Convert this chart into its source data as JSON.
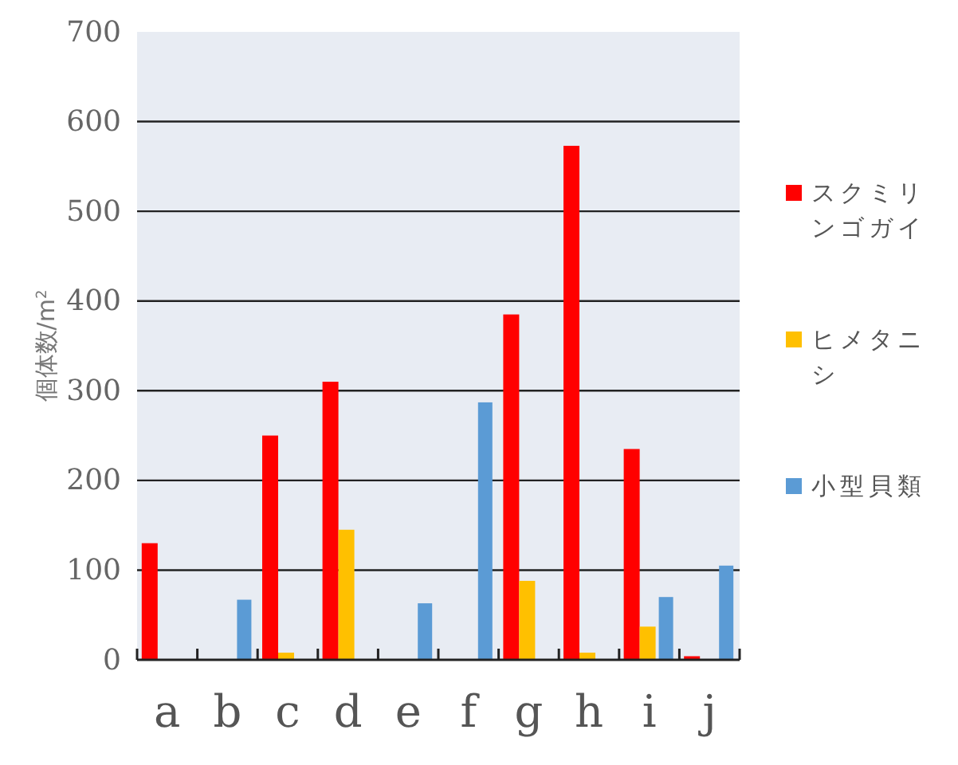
{
  "chart_data": {
    "type": "bar",
    "ylabel": "個体数/m$^{2}$",
    "categories": [
      "a",
      "b",
      "c",
      "d",
      "e",
      "f",
      "g",
      "h",
      "i",
      "j"
    ],
    "series": [
      {
        "name": "スクミリンゴガイ",
        "color": "#ff0000",
        "values": [
          130,
          0,
          250,
          310,
          0,
          0,
          385,
          573,
          235,
          4
        ]
      },
      {
        "name": "ヒメタニシ",
        "color": "#ffc000",
        "values": [
          0,
          0,
          8,
          145,
          0,
          0,
          88,
          8,
          37,
          0
        ]
      },
      {
        "name": "小型貝類",
        "color": "#5b9bd5",
        "values": [
          null,
          67,
          null,
          0,
          63,
          287,
          0,
          null,
          70,
          105
        ]
      }
    ],
    "ylim": [
      0,
      700
    ],
    "yticks": [
      0,
      100,
      200,
      300,
      400,
      500,
      600,
      700
    ],
    "grid": "y",
    "legend": "right"
  }
}
